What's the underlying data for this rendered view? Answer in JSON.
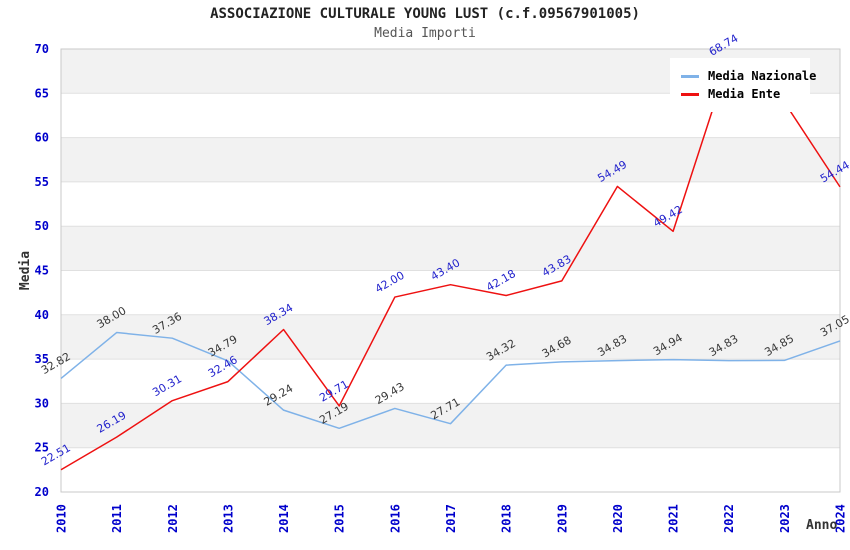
{
  "chart": {
    "title": "ASSOCIAZIONE CULTURALE YOUNG LUST (c.f.09567901005)",
    "subtitle": "Media Importi",
    "legend": [
      {
        "label": "Media Nazionale",
        "color": "#7fb2e8"
      },
      {
        "label": "Media Ente",
        "color": "#ee1111"
      }
    ]
  },
  "chart_data": {
    "type": "line",
    "title": "ASSOCIAZIONE CULTURALE YOUNG LUST (c.f.09567901005)",
    "subtitle": "Media Importi",
    "xlabel": "Anno",
    "ylabel": "Media",
    "categories": [
      "2010",
      "2011",
      "2012",
      "2013",
      "2014",
      "2015",
      "2016",
      "2017",
      "2018",
      "2019",
      "2020",
      "2021",
      "2022",
      "2023",
      "2024"
    ],
    "series": [
      {
        "name": "Media Nazionale",
        "color": "#7fb2e8",
        "label_color": "#383838",
        "values": [
          32.82,
          38.0,
          37.36,
          34.79,
          29.24,
          27.19,
          29.43,
          27.71,
          34.32,
          34.68,
          34.83,
          34.94,
          34.83,
          34.85,
          37.05
        ],
        "labels": [
          "32.82",
          "38.00",
          "37.36",
          "34.79",
          "29.24",
          "27.19",
          "29.43",
          "27.71",
          "34.32",
          "34.68",
          "34.83",
          "34.94",
          "34.83",
          "34.85",
          "37.05"
        ]
      },
      {
        "name": "Media Ente",
        "color": "#ee1111",
        "label_color": "#2222cc",
        "values": [
          22.51,
          26.19,
          30.31,
          32.46,
          38.34,
          29.71,
          42.0,
          43.4,
          42.18,
          43.83,
          54.49,
          49.42,
          68.74,
          64.0,
          54.44
        ],
        "labels": [
          "22.51",
          "26.19",
          "30.31",
          "32.46",
          "38.34",
          "29.71",
          "42.00",
          "43.40",
          "42.18",
          "43.83",
          "54.49",
          "49.42",
          "68.74",
          null,
          "54.44"
        ]
      }
    ],
    "ylim": [
      20,
      70
    ],
    "ytick_step": 5,
    "yticks": [
      20,
      25,
      30,
      35,
      40,
      45,
      50,
      55,
      60,
      65,
      70
    ],
    "grid": "horizontal-bands",
    "band_colors": [
      "#ffffff",
      "#f2f2f2"
    ],
    "tick_color": "#0000cc",
    "legend_position": "top-right"
  }
}
